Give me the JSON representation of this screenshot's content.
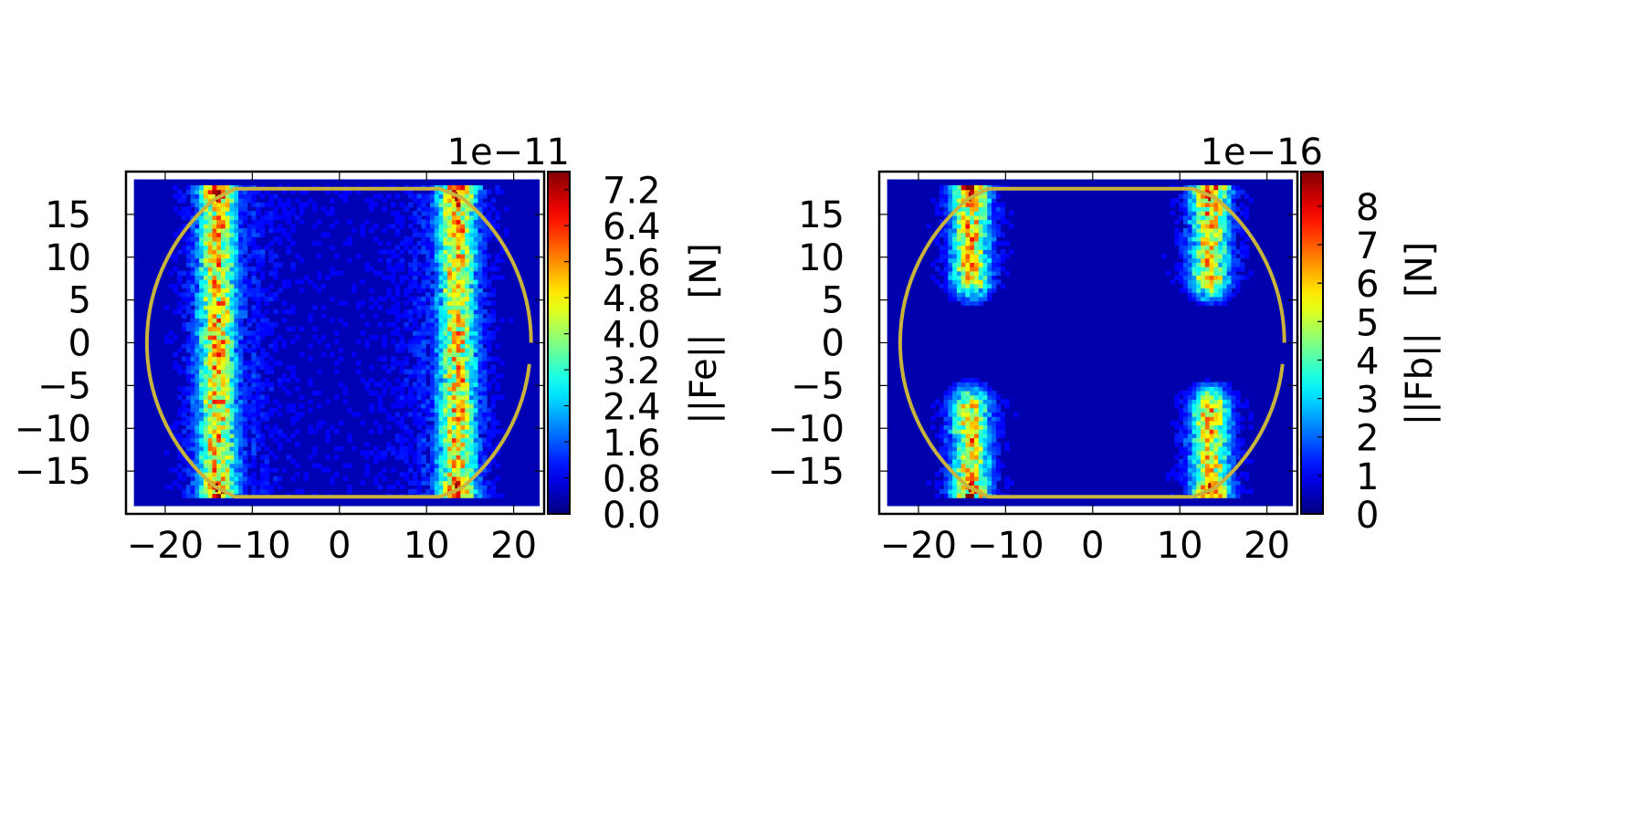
{
  "colors": {
    "background": "#ffffff",
    "heatmap_base": "#00008f",
    "outline": "#c8b43c",
    "colormap": "jet"
  },
  "chart_data": [
    {
      "type": "heatmap",
      "title": "",
      "xlabel": "",
      "ylabel": "",
      "xlim": [
        -24.5,
        23.5
      ],
      "ylim": [
        -20,
        20
      ],
      "x_ticks": [
        "−20",
        "−10",
        "0",
        "10",
        "20"
      ],
      "x_tick_values": [
        -20,
        -10,
        0,
        10,
        20
      ],
      "y_ticks": [
        "15",
        "10",
        "5",
        "0",
        "−5",
        "−10",
        "−15"
      ],
      "y_tick_values": [
        15,
        10,
        5,
        0,
        -5,
        -10,
        -15
      ],
      "colorbar": {
        "label": "||Fe||   [N]",
        "offset_text": "1e−11",
        "ticks": [
          "0.0",
          "0.8",
          "1.6",
          "2.4",
          "3.2",
          "4.0",
          "4.8",
          "5.6",
          "6.4",
          "7.2"
        ],
        "tick_values": [
          0.0,
          0.8,
          1.6,
          2.4,
          3.2,
          4.0,
          4.8,
          5.6,
          6.4,
          7.2
        ],
        "range": [
          0,
          7.6
        ]
      },
      "features": {
        "high_bands_x": [
          -14,
          13.5
        ],
        "band_y_range": [
          -18,
          18
        ],
        "band_peak": 5.5,
        "corner_peak_value": 7.5,
        "background_value": 0.4,
        "central_gap": false
      }
    },
    {
      "type": "heatmap",
      "title": "",
      "xlabel": "",
      "ylabel": "",
      "xlim": [
        -24.5,
        23.5
      ],
      "ylim": [
        -20,
        20
      ],
      "x_ticks": [
        "−20",
        "−10",
        "0",
        "10",
        "20"
      ],
      "x_tick_values": [
        -20,
        -10,
        0,
        10,
        20
      ],
      "y_ticks": [
        "15",
        "10",
        "5",
        "0",
        "−5",
        "−10",
        "−15"
      ],
      "y_tick_values": [
        15,
        10,
        5,
        0,
        -5,
        -10,
        -15
      ],
      "colorbar": {
        "label": "||Fb||   [N]",
        "offset_text": "1e−16",
        "ticks": [
          "0",
          "1",
          "2",
          "3",
          "4",
          "5",
          "6",
          "7",
          "8"
        ],
        "tick_values": [
          0,
          1,
          2,
          3,
          4,
          5,
          6,
          7,
          8
        ],
        "range": [
          0,
          8.9
        ]
      },
      "features": {
        "high_bands_x": [
          -14,
          13.5
        ],
        "band_y_range": [
          -18,
          18
        ],
        "band_peak": 6.5,
        "corner_peak_value": 8.5,
        "background_value": 0.4,
        "central_gap": true
      }
    }
  ]
}
